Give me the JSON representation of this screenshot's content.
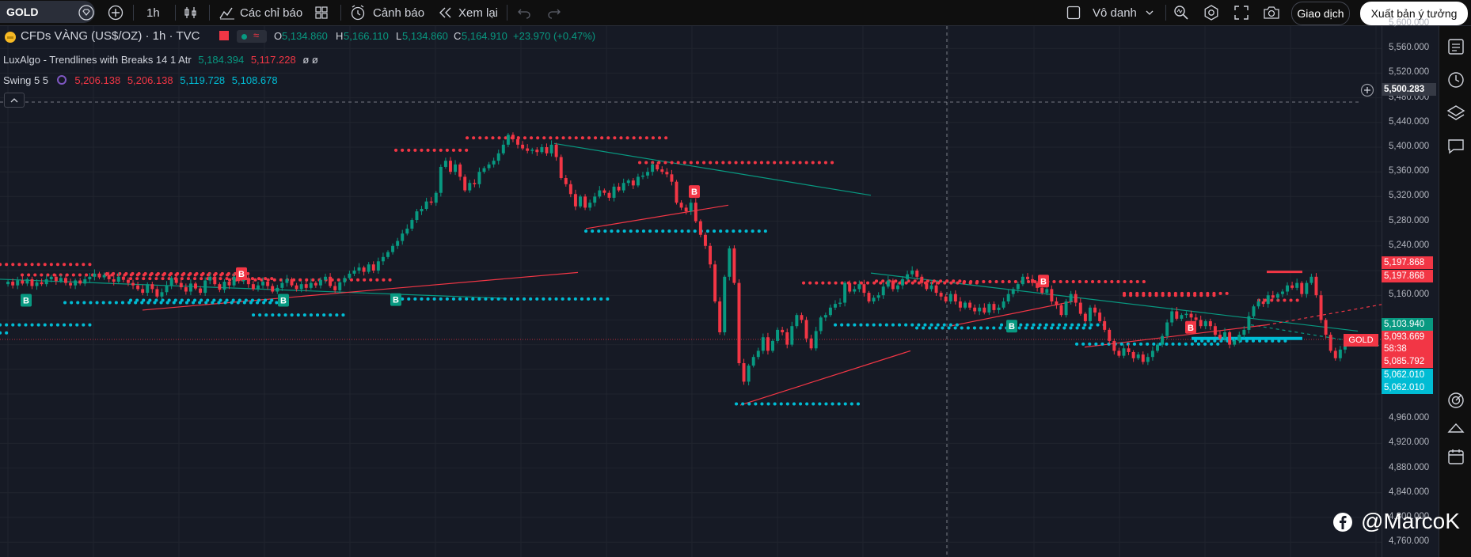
{
  "toolbar": {
    "symbol": "GOLD",
    "interval": "1h",
    "indicators_label": "Các chỉ báo",
    "alerts_label": "Cảnh báo",
    "replay_label": "Xem lại",
    "layout_name": "Vô danh",
    "trade_label": "Giao dịch",
    "publish_label": "Xuất bản ý tưởng"
  },
  "legend": {
    "title": "CFDs VÀNG (US$/OZ) · 1h · TVC",
    "o_label": "O",
    "o": "5,134.860",
    "h_label": "H",
    "h": "5,166.110",
    "l_label": "L",
    "l": "5,134.860",
    "c_label": "C",
    "c": "5,164.910",
    "change": "+23.970 (+0.47%)",
    "ind1_name": "LuxAlgo - Trendlines with Breaks 14 1 Atr",
    "ind1_v1": "5,184.394",
    "ind1_v2": "5,117.228",
    "ind1_v3": "ø ø",
    "ind2_name": "Swing 5 5",
    "ind2_v1": "5,206.138",
    "ind2_v2": "5,206.138",
    "ind2_v3": "5,119.728",
    "ind2_v4": "5,108.678"
  },
  "price_axis": {
    "ticks": [
      "5,600.000",
      "5,560.000",
      "5,520.000",
      "5,480.000",
      "5,440.000",
      "5,400.000",
      "5,360.000",
      "5,320.000",
      "5,280.000",
      "5,240.000",
      "5,160.000",
      "4,960.000",
      "4,920.000",
      "4,880.000",
      "4,840.000",
      "4,800.000",
      "4,760.000"
    ],
    "crosshair_price": "5,500.283",
    "badges": [
      {
        "text": "5,197.868",
        "color": "#f23645"
      },
      {
        "text": "5,197.868",
        "color": "#f23645"
      },
      {
        "text": "5,103.940",
        "color": "#089981"
      },
      {
        "text": "5,093.669",
        "color": "#f23645"
      },
      {
        "text": "58:38",
        "color": "#f23645"
      },
      {
        "text": "5,085.792",
        "color": "#f23645"
      },
      {
        "text": "5,062.010",
        "color": "#00bcd4"
      },
      {
        "text": "5,062.010",
        "color": "#00bcd4"
      }
    ],
    "symbol_tag": "GOLD"
  },
  "watermark": "@MarcoK",
  "colors": {
    "up": "#089981",
    "down": "#f23645",
    "swing_low": "#00bcd4",
    "background": "#161a25"
  },
  "icons": [
    "alert-icon",
    "search-icon",
    "gear-icon",
    "fullscreen-icon",
    "camera-icon",
    "watchlist-icon",
    "clock-icon",
    "layers-icon",
    "chat-icon",
    "target-icon",
    "calendar-icon"
  ],
  "chart_data": {
    "type": "candlestick",
    "unit": "US$/OZ",
    "ylim": [
      4740,
      5620
    ],
    "signal_markers": [
      "B",
      "B",
      "B",
      "B",
      "B",
      "B",
      "B"
    ]
  }
}
